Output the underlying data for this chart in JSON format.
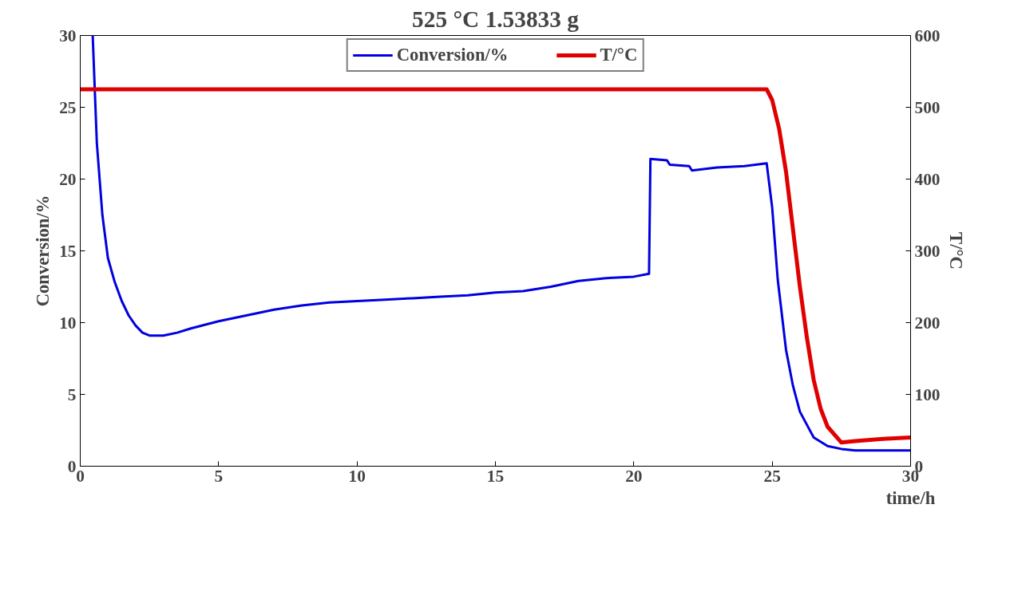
{
  "chart_data": {
    "type": "line",
    "title": "525 °C 1.53833 g",
    "xlabel": "time/h",
    "ylabel": "Conversion/%",
    "y2label": "T/°C",
    "xlim": [
      0,
      30
    ],
    "xticks": [
      0,
      5,
      10,
      15,
      20,
      25,
      30
    ],
    "ylim": [
      0,
      30
    ],
    "yticks": [
      0,
      5,
      10,
      15,
      20,
      25,
      30
    ],
    "y2lim": [
      0,
      600
    ],
    "y2ticks": [
      0,
      100,
      200,
      300,
      400,
      500,
      600
    ],
    "grid": false,
    "legend": "top",
    "line_style": "solid",
    "marker": "none",
    "series": [
      {
        "name": "Conversion/%",
        "color": "#0000e0",
        "x": [
          0.45,
          0.6,
          0.8,
          1,
          1.25,
          1.5,
          1.75,
          2,
          2.25,
          2.5,
          3,
          3.5,
          4,
          5,
          6,
          7,
          8,
          9,
          10,
          11,
          12,
          13,
          14,
          15,
          16,
          17,
          18,
          19,
          20,
          20.55,
          20.6,
          21.2,
          21.3,
          22,
          22.1,
          23,
          24,
          24.8,
          25,
          25.2,
          25.5,
          25.75,
          26,
          26.5,
          27,
          27.5,
          28,
          29,
          30
        ],
        "values": [
          30,
          22.5,
          17.5,
          14.5,
          12.8,
          11.5,
          10.5,
          9.8,
          9.3,
          9.1,
          9.1,
          9.3,
          9.6,
          10.1,
          10.5,
          10.9,
          11.2,
          11.4,
          11.5,
          11.6,
          11.7,
          11.8,
          11.9,
          12.1,
          12.2,
          12.5,
          12.9,
          13.1,
          13.2,
          13.4,
          21.4,
          21.3,
          21.0,
          20.9,
          20.6,
          20.8,
          20.9,
          21.1,
          18,
          13,
          8.1,
          5.6,
          3.8,
          2.0,
          1.4,
          1.2,
          1.1,
          1.1,
          1.1
        ]
      },
      {
        "name": "T/°C",
        "color": "#e00000",
        "axis": "y2",
        "x": [
          0,
          5,
          10,
          15,
          20,
          24.8,
          25,
          25.25,
          25.5,
          25.75,
          26,
          26.25,
          26.5,
          26.75,
          27,
          27.5,
          28,
          29,
          30
        ],
        "values": [
          525,
          525,
          525,
          525,
          525,
          525,
          510,
          470,
          410,
          330,
          250,
          180,
          120,
          80,
          55,
          33,
          35,
          38,
          40
        ]
      }
    ]
  }
}
